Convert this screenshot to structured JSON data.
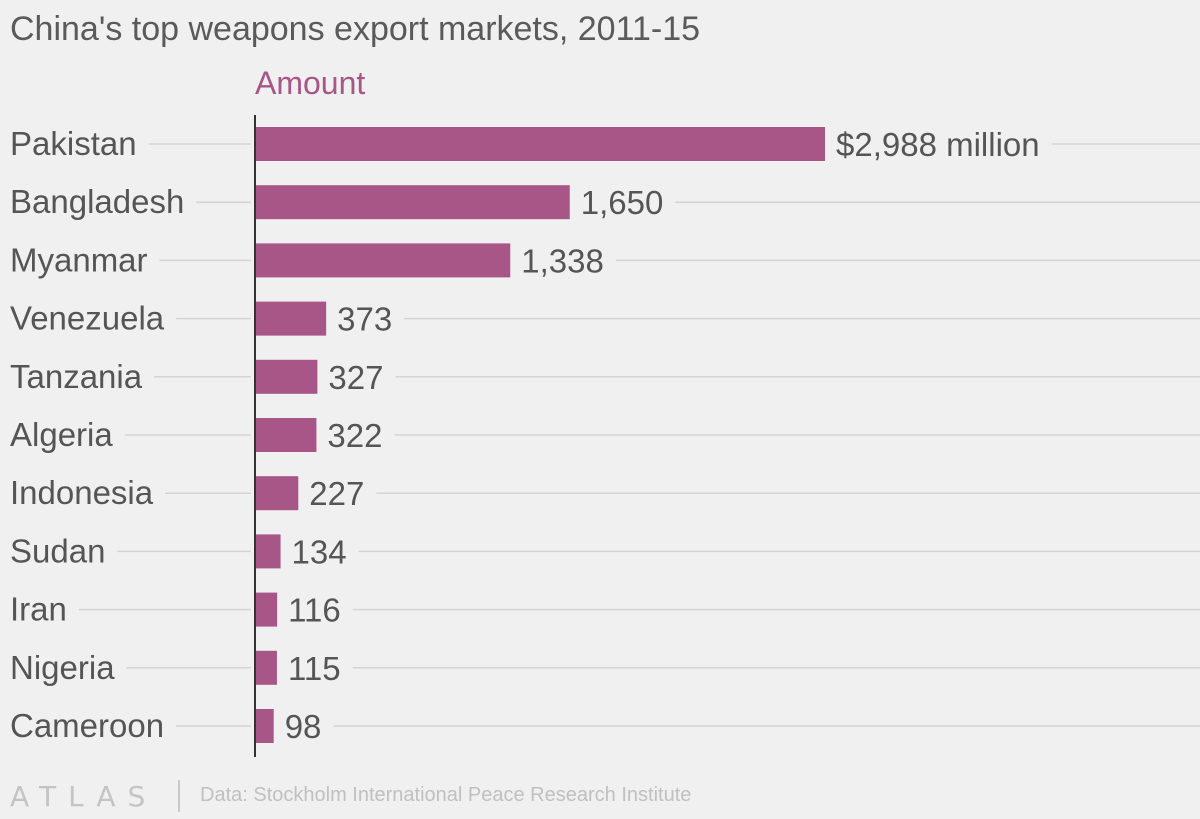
{
  "colors": {
    "background": "#f0f0f0",
    "bar": "#a85688",
    "series_label": "#a85688",
    "text": "#555555",
    "grid": "#d4d4d4",
    "axis": "#333333"
  },
  "chart_data": {
    "type": "bar",
    "orientation": "horizontal",
    "title": "China's top weapons export markets, 2011-15",
    "series_name": "Amount",
    "categories": [
      "Pakistan",
      "Bangladesh",
      "Myanmar",
      "Venezuela",
      "Tanzania",
      "Algeria",
      "Indonesia",
      "Sudan",
      "Iran",
      "Nigeria",
      "Cameroon"
    ],
    "values": [
      2988,
      1650,
      1338,
      373,
      327,
      322,
      227,
      134,
      116,
      115,
      98
    ],
    "value_labels": [
      "$2,988 million",
      "1,650",
      "1,338",
      "373",
      "327",
      "322",
      "227",
      "134",
      "116",
      "115",
      "98"
    ],
    "unit": "million",
    "xlim": [
      0,
      3000
    ],
    "grid": true,
    "legend": "top"
  },
  "footer": {
    "logo": "ATLAS",
    "source": "Data: Stockholm International Peace Research Institute"
  }
}
